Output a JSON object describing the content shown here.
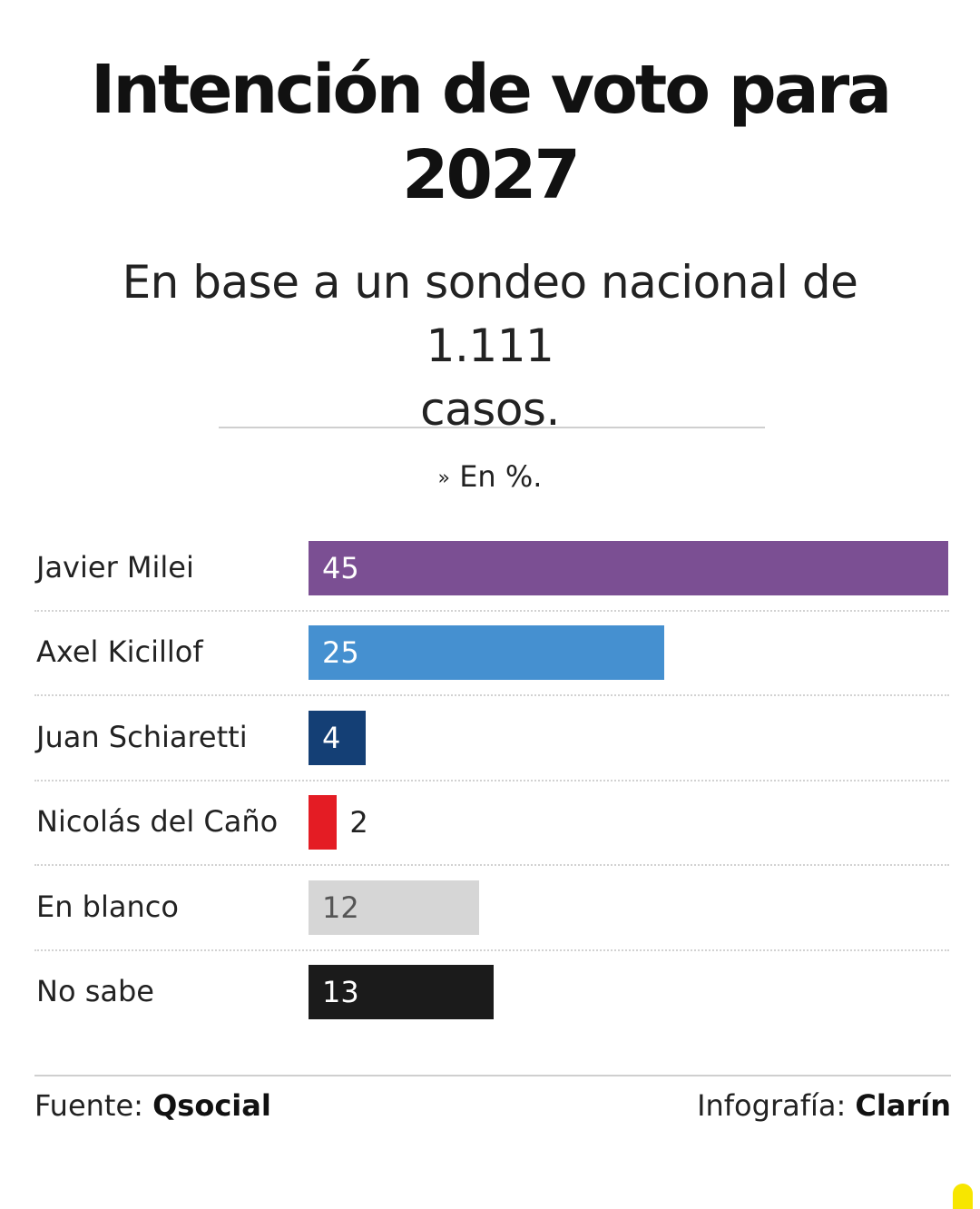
{
  "title_line1": "Intención de voto para",
  "title_line2": "2027",
  "subtitle_line1": "En base a un sondeo nacional de 1.111",
  "subtitle_line2": "casos.",
  "unit_label": "En %.",
  "footer": {
    "source_label": "Fuente:",
    "source_value": "Qsocial",
    "credit_label": "Infografía:",
    "credit_value": "Clarín"
  },
  "chart_data": {
    "type": "bar",
    "orientation": "horizontal",
    "categories": [
      "Javier Milei",
      "Axel Kicillof",
      "Juan Schiaretti",
      "Nicolás del Caño",
      "En blanco",
      "No sabe"
    ],
    "values": [
      45,
      25,
      4,
      2,
      12,
      13
    ],
    "colors": [
      "#7b4f93",
      "#4590d0",
      "#143f75",
      "#e41c24",
      "#d6d6d6",
      "#1b1b1b"
    ],
    "value_label_colors": [
      "#ffffff",
      "#ffffff",
      "#ffffff",
      "#222222",
      "#555555",
      "#ffffff"
    ],
    "xlim": [
      0,
      45
    ],
    "grid": false
  }
}
